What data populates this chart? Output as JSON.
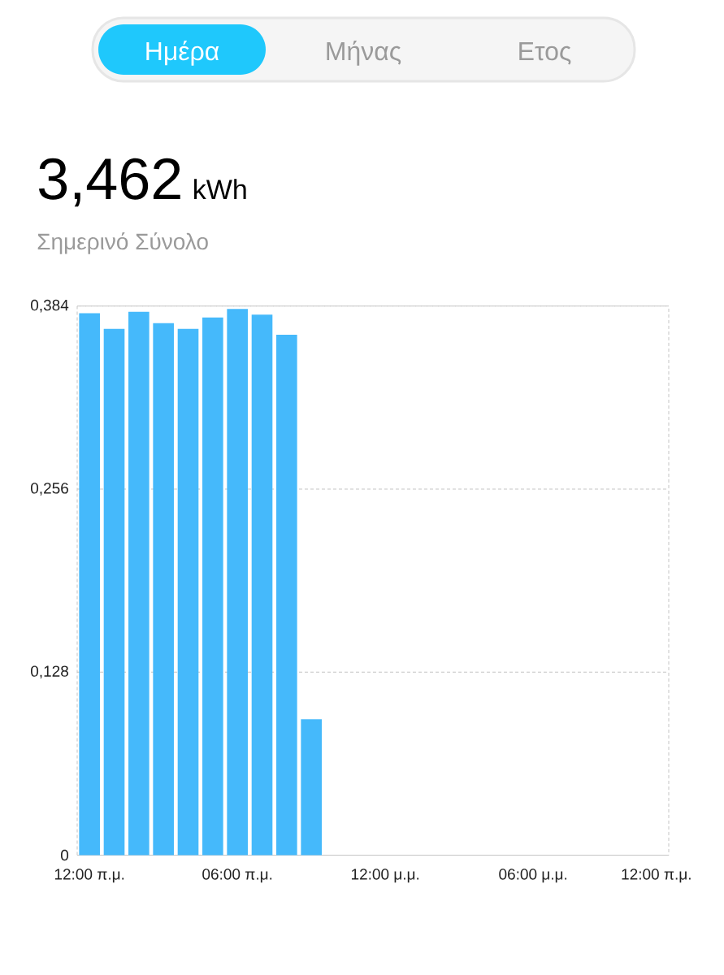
{
  "chart_data": {
    "type": "bar",
    "title": "3,462",
    "subtitle": "Σημερινό Σύνολο",
    "annotations": [
      "Ημέρα",
      "Μήνας",
      "Ετος",
      "kWh"
    ],
    "categories": [
      "12:00 π.μ.",
      null,
      null,
      null,
      null,
      null,
      "06:00 π.μ.",
      null,
      null,
      null,
      null,
      null,
      "12:00 μ.μ.",
      null,
      null,
      null,
      null,
      null,
      "06:00 μ.μ.",
      null,
      null,
      null,
      null,
      "12:00 π.μ."
    ],
    "values": [
      0.379,
      0.368,
      0.38,
      0.372,
      0.368,
      0.376,
      0.382,
      0.378,
      0.364,
      0.095,
      null,
      null,
      null,
      null,
      null,
      null,
      null,
      null,
      null,
      null,
      null,
      null,
      null,
      null
    ],
    "color": "#45b9fb",
    "ylim": [
      0,
      0.384
    ],
    "yticks": [
      0,
      {
        "value": 0.128,
        "label": "0,128"
      },
      {
        "value": 0.256,
        "label": "0,256"
      },
      {
        "value": 0.384,
        "label": "0,384"
      }
    ],
    "grid": "y"
  }
}
